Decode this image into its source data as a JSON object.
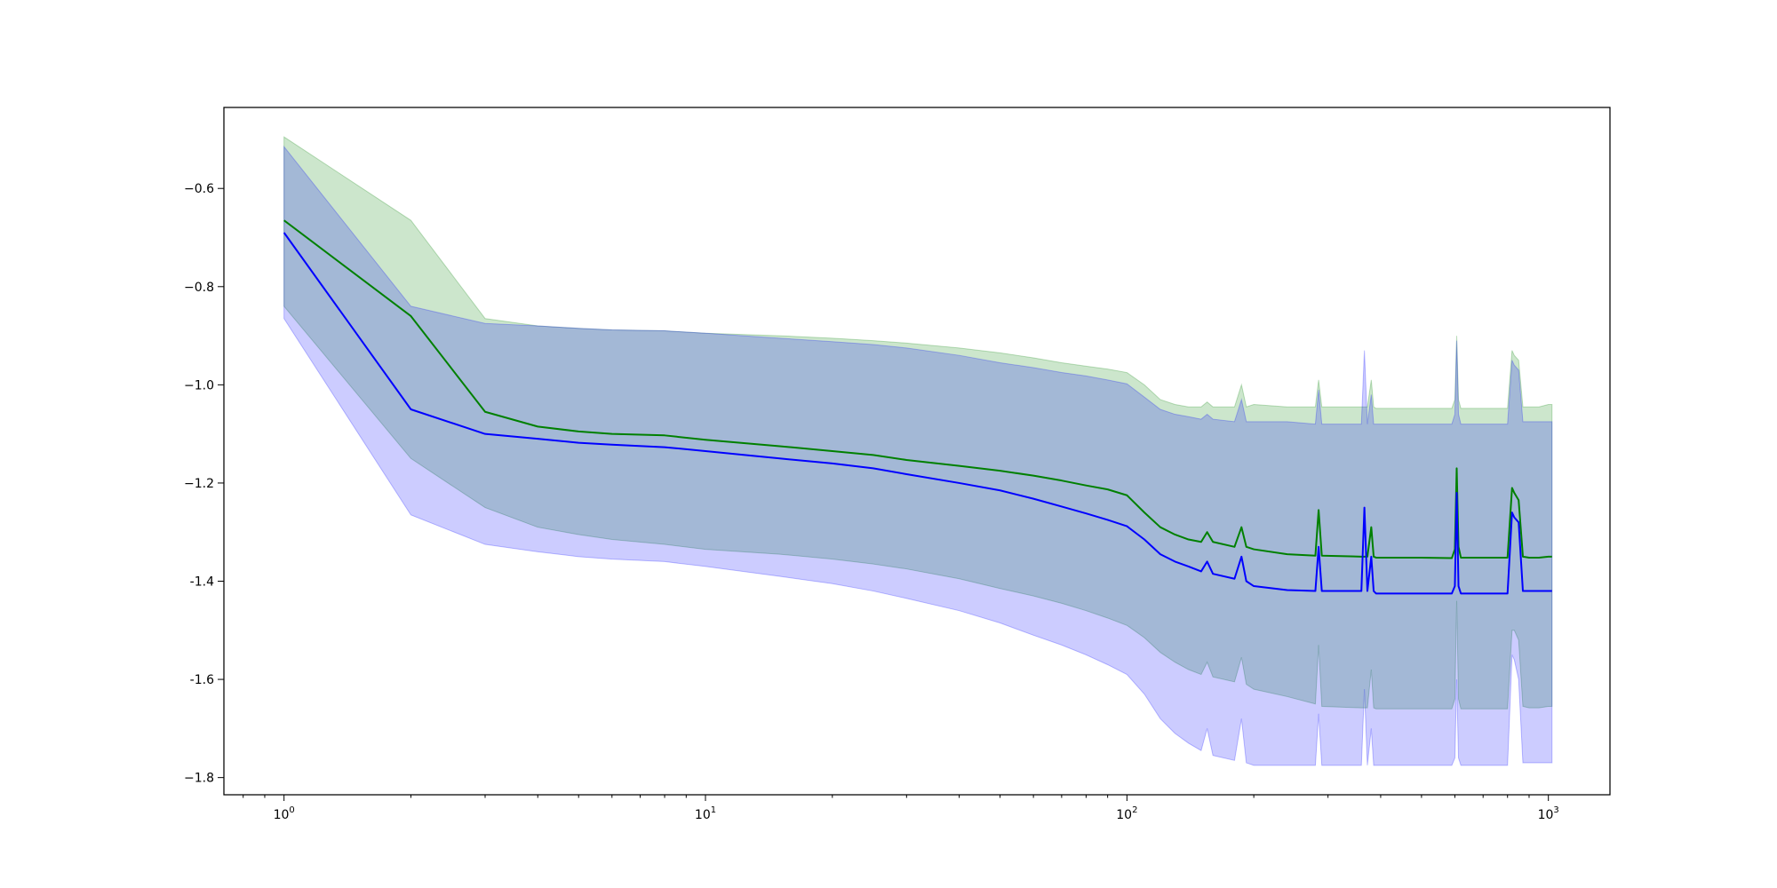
{
  "chart_data": {
    "type": "line",
    "title": "",
    "xlabel": "",
    "ylabel": "",
    "xscale": "log",
    "xlim": [
      0.72,
      1400
    ],
    "ylim": [
      -1.835,
      -0.435
    ],
    "grid": false,
    "legend": "none",
    "x_ticks": [
      {
        "value": 1,
        "base": "10",
        "exp": "0"
      },
      {
        "value": 10,
        "base": "10",
        "exp": "1"
      },
      {
        "value": 100,
        "base": "10",
        "exp": "2"
      },
      {
        "value": 1000,
        "base": "10",
        "exp": "3"
      }
    ],
    "y_ticks": [
      {
        "value": -0.6,
        "label": "−0.6"
      },
      {
        "value": -0.8,
        "label": "−0.8"
      },
      {
        "value": -1.0,
        "label": "−1.0"
      },
      {
        "value": -1.2,
        "label": "−1.2"
      },
      {
        "value": -1.4,
        "label": "-1.4"
      },
      {
        "value": -1.6,
        "label": "-1.6"
      },
      {
        "value": -1.8,
        "label": "−1.8"
      }
    ],
    "series": [
      {
        "color": "#008000",
        "band_color": "#008000",
        "band_opacity": 0.2,
        "x": [
          1,
          2,
          3,
          4,
          5,
          6,
          8,
          10,
          15,
          20,
          25,
          30,
          40,
          50,
          60,
          70,
          80,
          90,
          100,
          110,
          120,
          130,
          140,
          150,
          155,
          160,
          180,
          187,
          192,
          200,
          240,
          280,
          285,
          290,
          360,
          366,
          372,
          380,
          385,
          390,
          500,
          590,
          600,
          606,
          612,
          620,
          800,
          820,
          830,
          850,
          870,
          900,
          950,
          1000,
          1020
        ],
        "mean": [
          -0.665,
          -0.86,
          -1.055,
          -1.085,
          -1.095,
          -1.1,
          -1.103,
          -1.112,
          -1.125,
          -1.135,
          -1.143,
          -1.153,
          -1.165,
          -1.175,
          -1.185,
          -1.195,
          -1.205,
          -1.213,
          -1.225,
          -1.26,
          -1.29,
          -1.305,
          -1.315,
          -1.32,
          -1.3,
          -1.32,
          -1.33,
          -1.29,
          -1.33,
          -1.335,
          -1.345,
          -1.348,
          -1.255,
          -1.348,
          -1.35,
          -1.35,
          -1.35,
          -1.29,
          -1.35,
          -1.352,
          -1.352,
          -1.353,
          -1.335,
          -1.17,
          -1.33,
          -1.352,
          -1.352,
          -1.21,
          -1.22,
          -1.235,
          -1.35,
          -1.352,
          -1.352,
          -1.35,
          -1.35
        ],
        "upper": [
          -0.495,
          -0.665,
          -0.865,
          -0.88,
          -0.885,
          -0.888,
          -0.89,
          -0.895,
          -0.9,
          -0.905,
          -0.91,
          -0.915,
          -0.925,
          -0.935,
          -0.945,
          -0.955,
          -0.962,
          -0.968,
          -0.975,
          -1.0,
          -1.03,
          -1.04,
          -1.045,
          -1.045,
          -1.035,
          -1.045,
          -1.045,
          -1.0,
          -1.045,
          -1.04,
          -1.045,
          -1.045,
          -0.99,
          -1.045,
          -1.045,
          -1.045,
          -1.045,
          -0.99,
          -1.045,
          -1.048,
          -1.048,
          -1.048,
          -1.03,
          -0.9,
          -1.03,
          -1.048,
          -1.048,
          -0.93,
          -0.94,
          -0.95,
          -1.045,
          -1.045,
          -1.045,
          -1.04,
          -1.04
        ],
        "lower": [
          -0.84,
          -1.15,
          -1.25,
          -1.29,
          -1.305,
          -1.315,
          -1.325,
          -1.335,
          -1.345,
          -1.355,
          -1.365,
          -1.375,
          -1.395,
          -1.415,
          -1.43,
          -1.445,
          -1.46,
          -1.475,
          -1.49,
          -1.515,
          -1.545,
          -1.565,
          -1.58,
          -1.59,
          -1.565,
          -1.595,
          -1.605,
          -1.555,
          -1.61,
          -1.62,
          -1.635,
          -1.65,
          -1.53,
          -1.655,
          -1.658,
          -1.658,
          -1.658,
          -1.58,
          -1.658,
          -1.66,
          -1.66,
          -1.66,
          -1.64,
          -1.44,
          -1.64,
          -1.66,
          -1.66,
          -1.5,
          -1.5,
          -1.52,
          -1.655,
          -1.658,
          -1.658,
          -1.655,
          -1.655
        ]
      },
      {
        "color": "#0000ff",
        "band_color": "#0000ff",
        "band_opacity": 0.2,
        "x": [
          1,
          2,
          3,
          4,
          5,
          6,
          8,
          10,
          15,
          20,
          25,
          30,
          40,
          50,
          60,
          70,
          80,
          90,
          100,
          110,
          120,
          130,
          140,
          150,
          155,
          160,
          180,
          187,
          192,
          200,
          240,
          280,
          285,
          290,
          360,
          366,
          372,
          380,
          385,
          390,
          500,
          590,
          600,
          606,
          612,
          620,
          800,
          820,
          830,
          850,
          870,
          900,
          950,
          1000,
          1020
        ],
        "mean": [
          -0.69,
          -1.05,
          -1.1,
          -1.11,
          -1.118,
          -1.122,
          -1.127,
          -1.135,
          -1.15,
          -1.16,
          -1.17,
          -1.182,
          -1.2,
          -1.215,
          -1.232,
          -1.248,
          -1.262,
          -1.275,
          -1.288,
          -1.315,
          -1.345,
          -1.36,
          -1.37,
          -1.38,
          -1.36,
          -1.385,
          -1.395,
          -1.35,
          -1.4,
          -1.41,
          -1.418,
          -1.42,
          -1.33,
          -1.42,
          -1.42,
          -1.25,
          -1.42,
          -1.35,
          -1.42,
          -1.425,
          -1.425,
          -1.425,
          -1.41,
          -1.22,
          -1.41,
          -1.425,
          -1.425,
          -1.26,
          -1.27,
          -1.28,
          -1.42,
          -1.42,
          -1.42,
          -1.42,
          -1.42
        ],
        "upper": [
          -0.515,
          -0.84,
          -0.875,
          -0.88,
          -0.885,
          -0.888,
          -0.89,
          -0.895,
          -0.905,
          -0.912,
          -0.918,
          -0.925,
          -0.94,
          -0.955,
          -0.965,
          -0.975,
          -0.982,
          -0.99,
          -0.998,
          -1.025,
          -1.05,
          -1.06,
          -1.065,
          -1.07,
          -1.06,
          -1.07,
          -1.075,
          -1.03,
          -1.075,
          -1.075,
          -1.075,
          -1.08,
          -1.01,
          -1.08,
          -1.08,
          -0.93,
          -1.08,
          -1.02,
          -1.08,
          -1.08,
          -1.08,
          -1.08,
          -1.06,
          -0.91,
          -1.06,
          -1.08,
          -1.08,
          -0.95,
          -0.96,
          -0.97,
          -1.075,
          -1.075,
          -1.075,
          -1.075,
          -1.075
        ],
        "lower": [
          -0.865,
          -1.265,
          -1.325,
          -1.34,
          -1.35,
          -1.355,
          -1.36,
          -1.37,
          -1.39,
          -1.405,
          -1.42,
          -1.435,
          -1.46,
          -1.485,
          -1.51,
          -1.53,
          -1.55,
          -1.57,
          -1.59,
          -1.63,
          -1.68,
          -1.71,
          -1.73,
          -1.745,
          -1.7,
          -1.755,
          -1.765,
          -1.68,
          -1.77,
          -1.775,
          -1.775,
          -1.775,
          -1.67,
          -1.775,
          -1.775,
          -1.62,
          -1.775,
          -1.7,
          -1.775,
          -1.775,
          -1.775,
          -1.775,
          -1.76,
          -1.6,
          -1.76,
          -1.775,
          -1.775,
          -1.55,
          -1.56,
          -1.6,
          -1.77,
          -1.77,
          -1.77,
          -1.77,
          -1.77
        ]
      }
    ]
  }
}
